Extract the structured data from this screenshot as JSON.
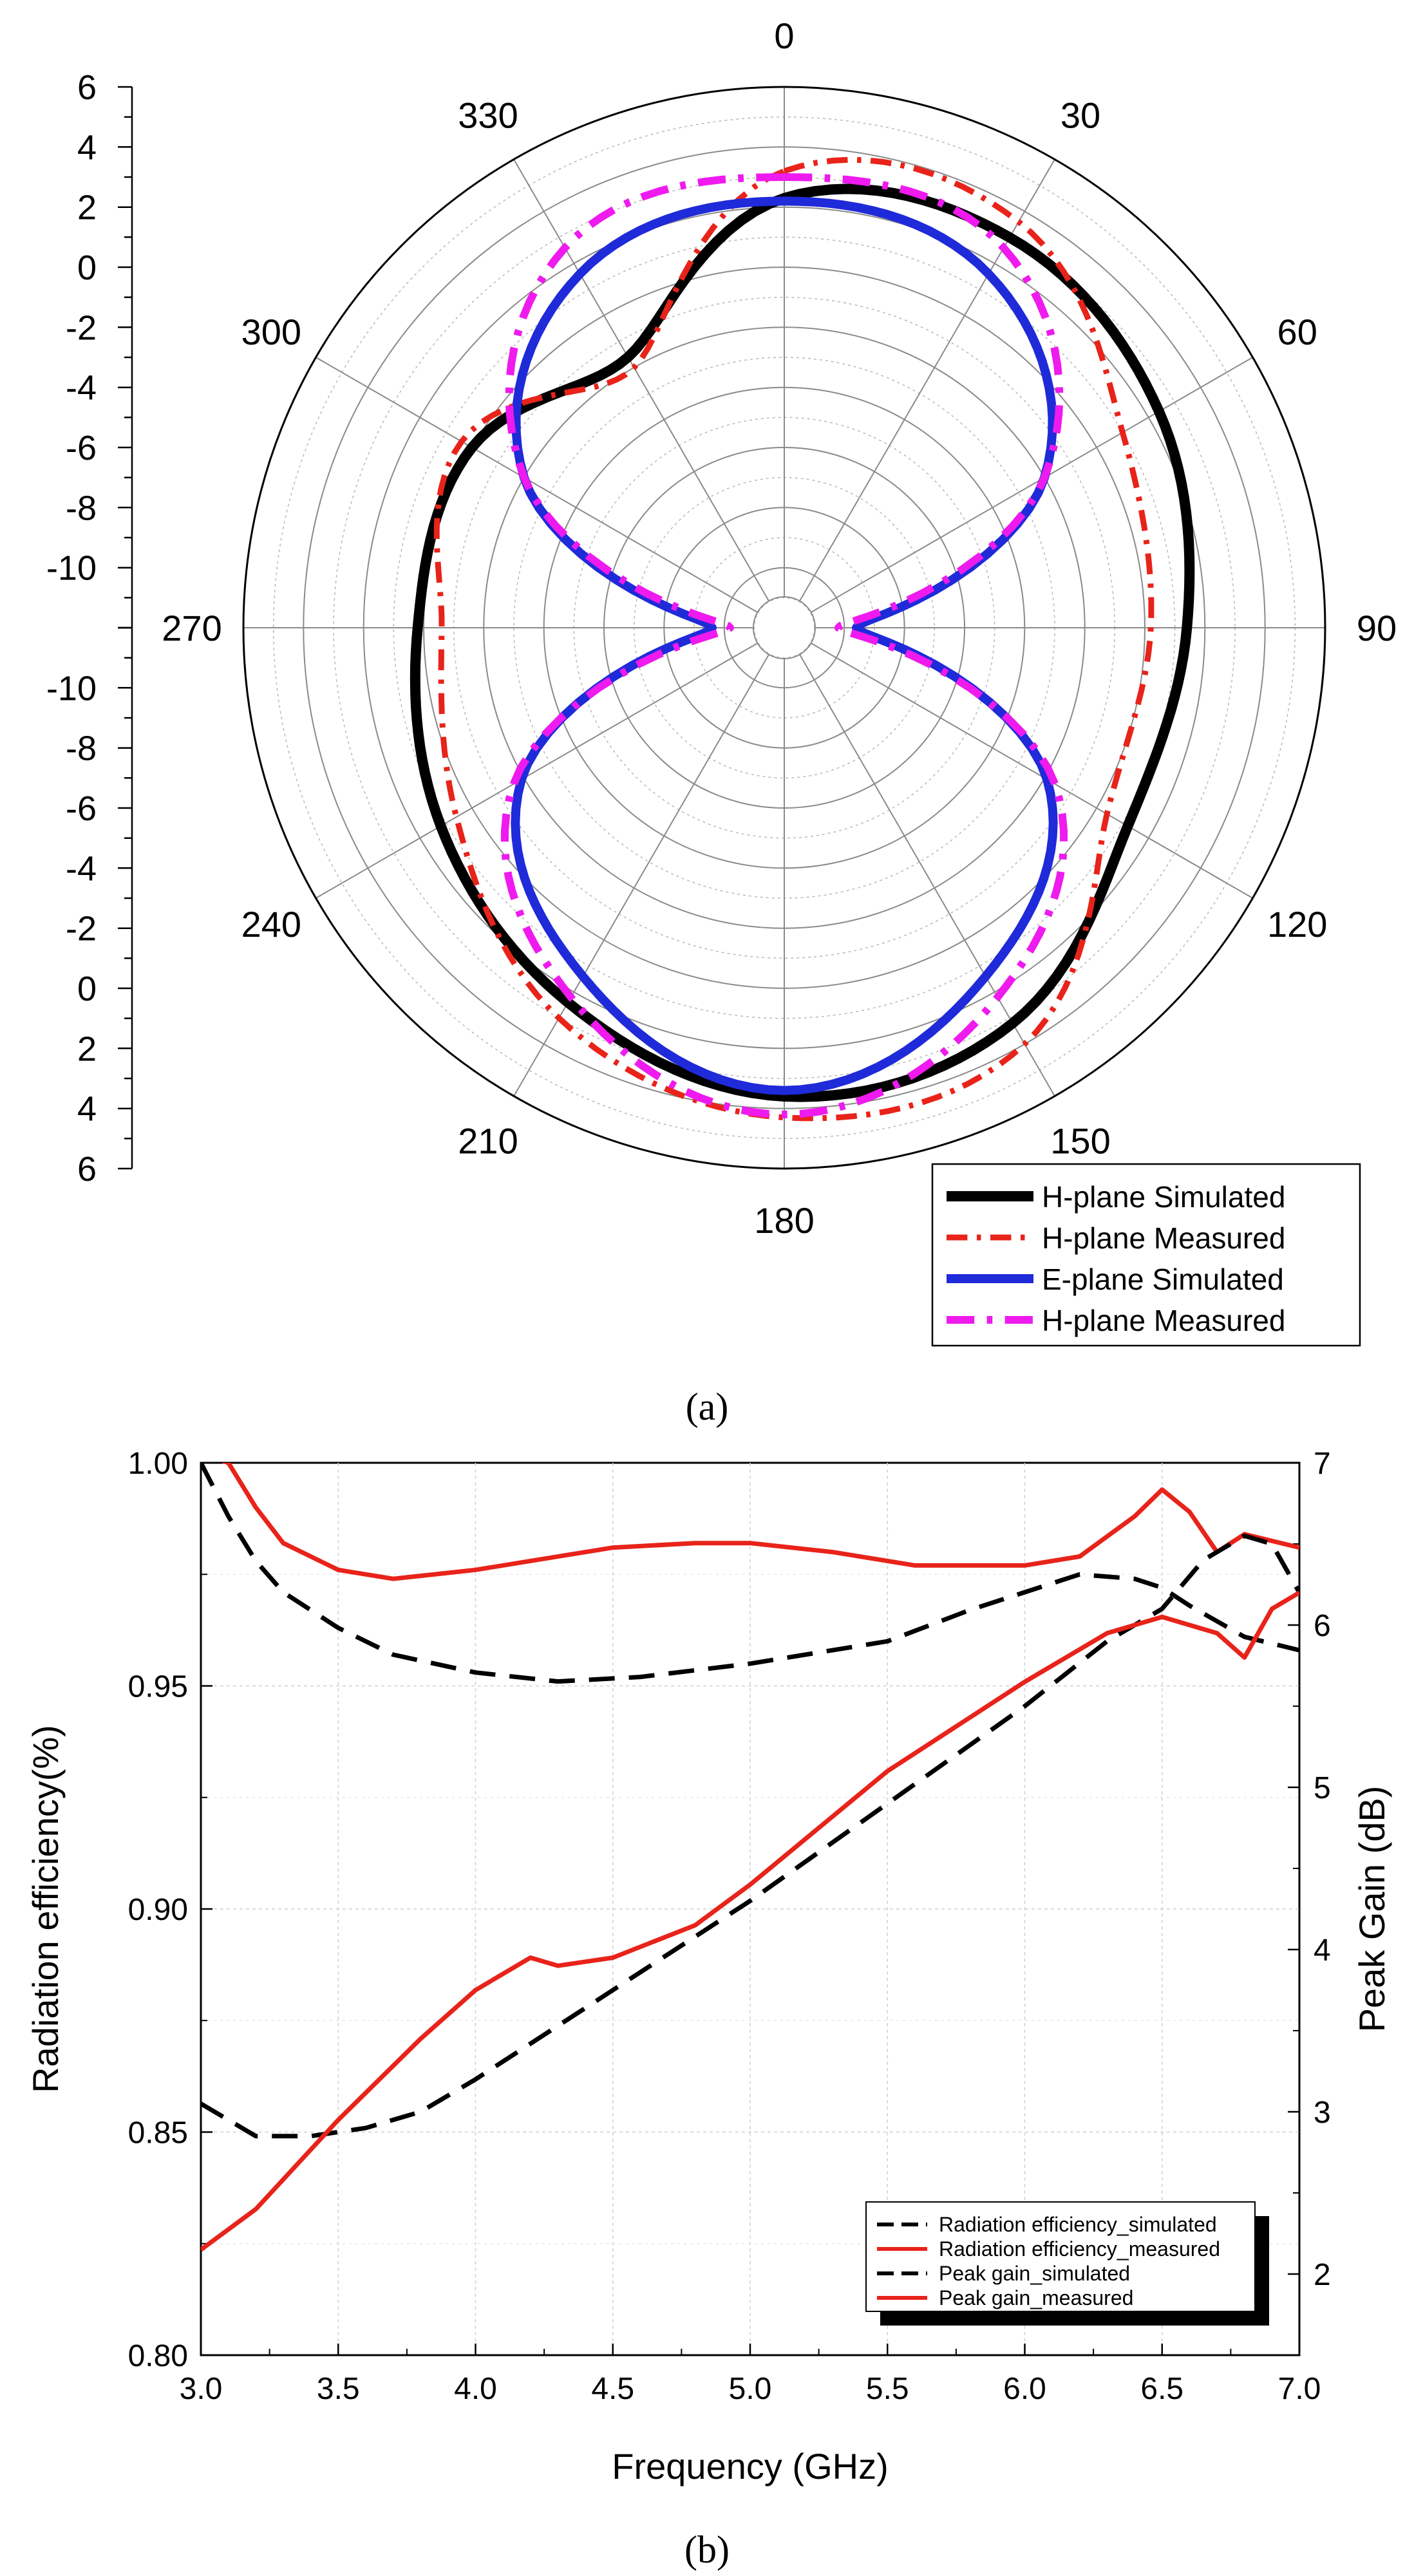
{
  "figure": {
    "caption_a": "(a)",
    "caption_b": "(b)"
  },
  "chart_data": [
    {
      "type": "polar",
      "title": "",
      "angle_labels": [
        "0",
        "30",
        "60",
        "90",
        "120",
        "150",
        "180",
        "210",
        "240",
        "270",
        "300",
        "330"
      ],
      "radial_axis": {
        "labels_top": [
          "6",
          "4",
          "2",
          "0",
          "-2",
          "-4",
          "-6",
          "-8",
          "-10"
        ],
        "labels_bottom": [
          "-10",
          "-8",
          "-6",
          "-4",
          "-2",
          "0",
          "2",
          "4",
          "6"
        ],
        "range_db": [
          -12,
          6
        ],
        "unit": "dB"
      },
      "angles_deg": [
        0,
        30,
        60,
        90,
        120,
        150,
        180,
        210,
        240,
        270,
        300,
        330
      ],
      "series": [
        {
          "name": "H-plane Simulated",
          "color": "#000000",
          "style": "solid",
          "values": [
            2.3,
            3.0,
            2.4,
            1.4,
            1.2,
            3.2,
            3.6,
            2.4,
            1.2,
            0.2,
            0.0,
            -1.6
          ]
        },
        {
          "name": "H-plane Measured",
          "color": "#e8231a",
          "style": "dashdot",
          "values": [
            3.2,
            3.6,
            1.0,
            0.2,
            0.4,
            4.0,
            4.3,
            3.0,
            0.6,
            -0.6,
            0.4,
            -2.0
          ]
        },
        {
          "name": "E-plane Simulated",
          "color": "#1f2ad9",
          "style": "solid",
          "values": [
            2.2,
            1.6,
            -2.0,
            -9.6,
            -1.9,
            1.4,
            3.4,
            1.4,
            -1.9,
            -9.6,
            -2.0,
            1.6
          ]
        },
        {
          "name": "H-plane Measured",
          "color": "#ee1aee",
          "style": "dashdot",
          "values": [
            3.0,
            2.6,
            -2.0,
            -10.2,
            -1.6,
            2.2,
            4.2,
            2.2,
            -1.6,
            -10.2,
            -2.0,
            2.6
          ]
        }
      ]
    },
    {
      "type": "line",
      "title": "",
      "xlabel": "Frequency (GHz)",
      "ylabel": "Radiation efficiency(%)",
      "ylabel_right": "Peak Gain (dB)",
      "xlim": [
        3.0,
        7.0
      ],
      "ylim": [
        0.8,
        1.0
      ],
      "ylim_right": [
        1.5,
        7
      ],
      "x_ticks": [
        "3.0",
        "3.5",
        "4.0",
        "4.5",
        "5.0",
        "5.5",
        "6.0",
        "6.5",
        "7.0"
      ],
      "y_ticks": [
        "0.80",
        "0.85",
        "0.90",
        "0.95",
        "1.00"
      ],
      "y_ticks_right": [
        "2",
        "3",
        "4",
        "5",
        "6",
        "7"
      ],
      "grid": true,
      "legend": "bottom-right",
      "series": [
        {
          "name": "Radiation efficiency_simulated",
          "axis": "left",
          "color": "#000000",
          "style": "dashed",
          "x": [
            3.0,
            3.1,
            3.2,
            3.3,
            3.5,
            3.7,
            4.0,
            4.3,
            4.6,
            5.0,
            5.5,
            5.8,
            6.0,
            6.2,
            6.4,
            6.5,
            6.6,
            6.8,
            7.0
          ],
          "y": [
            1.0,
            0.988,
            0.978,
            0.971,
            0.963,
            0.957,
            0.953,
            0.951,
            0.952,
            0.955,
            0.96,
            0.967,
            0.971,
            0.975,
            0.974,
            0.972,
            0.968,
            0.961,
            0.958
          ]
        },
        {
          "name": "Radiation efficiency_measured",
          "axis": "left",
          "color": "#e8231a",
          "style": "solid",
          "x": [
            3.0,
            3.1,
            3.2,
            3.3,
            3.5,
            3.7,
            4.0,
            4.5,
            4.8,
            5.0,
            5.3,
            5.6,
            6.0,
            6.2,
            6.4,
            6.5,
            6.6,
            6.7,
            6.8,
            7.0
          ],
          "y": [
            1.002,
            1.0,
            0.99,
            0.982,
            0.976,
            0.974,
            0.976,
            0.981,
            0.982,
            0.982,
            0.98,
            0.977,
            0.977,
            0.979,
            0.988,
            0.994,
            0.989,
            0.98,
            0.984,
            0.981
          ]
        },
        {
          "name": "Peak gain_simulated",
          "axis": "right",
          "color": "#000000",
          "style": "dashed",
          "x": [
            3.0,
            3.1,
            3.2,
            3.4,
            3.6,
            3.8,
            4.0,
            4.5,
            5.0,
            5.5,
            6.0,
            6.3,
            6.5,
            6.65,
            6.8,
            6.9,
            7.0
          ],
          "y": [
            3.05,
            2.95,
            2.85,
            2.85,
            2.9,
            3.0,
            3.2,
            3.75,
            4.3,
            4.9,
            5.5,
            5.9,
            6.1,
            6.4,
            6.55,
            6.5,
            6.2
          ]
        },
        {
          "name": "Peak gain_measured",
          "axis": "right",
          "color": "#e8231a",
          "style": "solid",
          "x": [
            3.0,
            3.2,
            3.5,
            3.8,
            4.0,
            4.2,
            4.3,
            4.5,
            4.8,
            5.0,
            5.5,
            6.0,
            6.3,
            6.5,
            6.6,
            6.7,
            6.8,
            6.9,
            7.0
          ],
          "y": [
            2.15,
            2.4,
            2.95,
            3.45,
            3.75,
            3.95,
            3.9,
            3.95,
            4.15,
            4.4,
            5.1,
            5.65,
            5.95,
            6.05,
            6.0,
            5.95,
            5.8,
            6.1,
            6.2
          ]
        }
      ]
    }
  ]
}
